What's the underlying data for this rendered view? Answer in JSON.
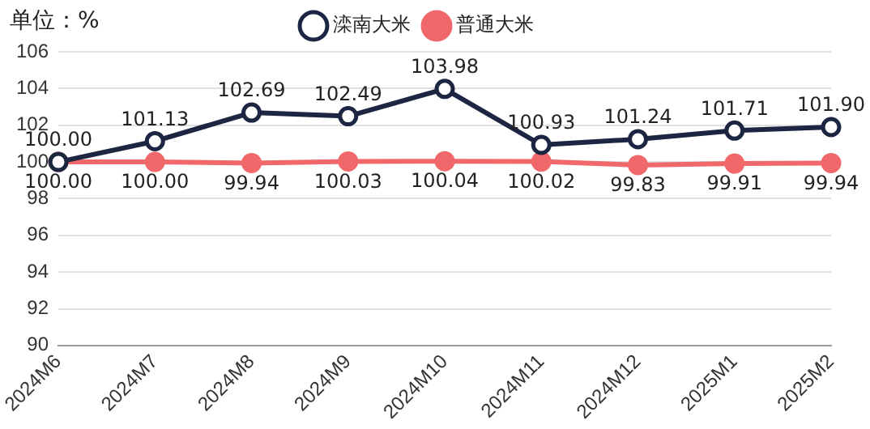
{
  "chart_data": {
    "type": "line",
    "ylabel": "单位：%",
    "categories": [
      "2024M6",
      "2024M7",
      "2024M8",
      "2024M9",
      "2024M10",
      "2024M11",
      "2024M12",
      "2025M1",
      "2025M2"
    ],
    "series": [
      {
        "name": "滦南大米",
        "color": "#1c2541",
        "values": [
          100.0,
          101.13,
          102.69,
          102.49,
          103.98,
          100.93,
          101.24,
          101.71,
          101.9
        ],
        "value_labels": [
          "100.00",
          "101.13",
          "102.69",
          "102.49",
          "103.98",
          "100.93",
          "101.24",
          "101.71",
          "101.90"
        ]
      },
      {
        "name": "普通大米",
        "color": "#f0686a",
        "values": [
          100.0,
          100.0,
          99.94,
          100.03,
          100.04,
          100.02,
          99.83,
          99.91,
          99.94
        ],
        "value_labels": [
          "100.00",
          "100.00",
          "99.94",
          "100.03",
          "100.04",
          "100.02",
          "99.83",
          "99.91",
          "99.94"
        ]
      }
    ],
    "ylim": [
      90,
      106
    ],
    "yticks": [
      90,
      92,
      94,
      96,
      98,
      100,
      102,
      104,
      106
    ],
    "grid": "y",
    "legend": "top",
    "marker": "circle",
    "line_style": "solid"
  }
}
